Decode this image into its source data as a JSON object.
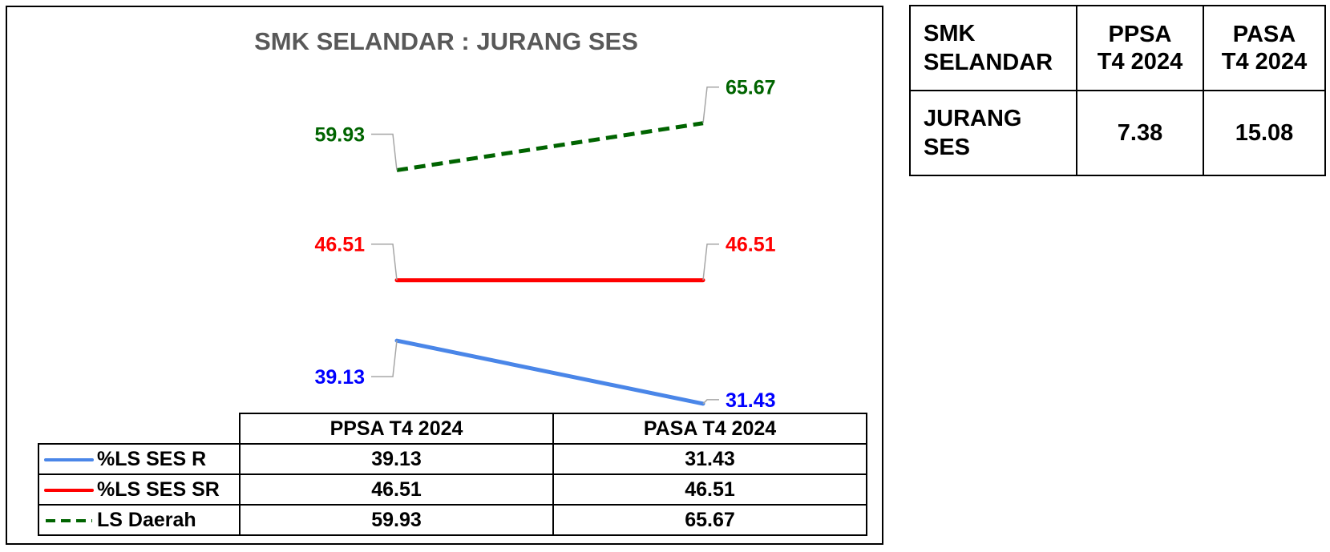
{
  "chart_data": {
    "type": "line",
    "title": "SMK SELANDAR : JURANG SES",
    "categories": [
      "PPSA T4 2024",
      "PASA T4 2024"
    ],
    "series": [
      {
        "name": "%LS SES R",
        "values": [
          39.13,
          31.43
        ],
        "color": "#4a86e8",
        "label_color": "#0000ff",
        "dash": false
      },
      {
        "name": "%LS SES SR",
        "values": [
          46.51,
          46.51
        ],
        "color": "#ff0000",
        "label_color": "#ff0000",
        "dash": false
      },
      {
        "name": "LS Daerah",
        "values": [
          59.93,
          65.67
        ],
        "color": "#006400",
        "label_color": "#006400",
        "dash": true
      }
    ],
    "data_labels": [
      [
        "39.13",
        "31.43"
      ],
      [
        "46.51",
        "46.51"
      ],
      [
        "59.93",
        "65.67"
      ]
    ],
    "ylim": [
      28,
      72
    ],
    "grid": false,
    "legend": "data-table"
  },
  "side_table": {
    "header": {
      "label_line1": "SMK",
      "label_line2": "SELANDAR",
      "col1_line1": "PPSA",
      "col1_line2": "T4 2024",
      "col2_line1": "PASA",
      "col2_line2": "T4 2024"
    },
    "row": {
      "label_line1": "JURANG",
      "label_line2": "SES",
      "col1": "7.38",
      "col2": "15.08"
    }
  }
}
